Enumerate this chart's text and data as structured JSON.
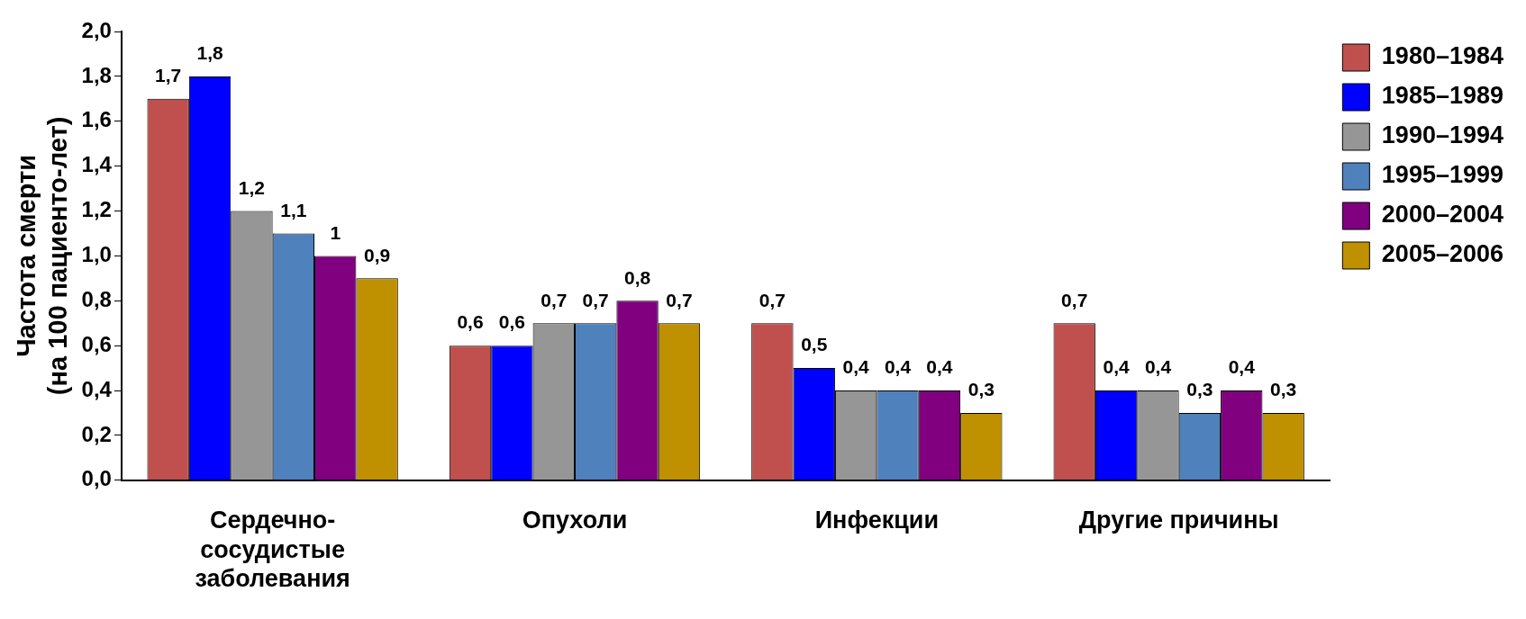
{
  "chart_data": {
    "type": "bar",
    "ylabel": "Частота смерти\n(на 100 пациенто-лет)",
    "categories": [
      "Сердечно-\nсосудистые\nзаболевания",
      "Опухоли",
      "Инфекции",
      "Другие причины"
    ],
    "series": [
      {
        "name": "1980–1984",
        "color": "#c0504d",
        "values": [
          1.7,
          0.6,
          0.7,
          0.7
        ],
        "value_labels": [
          "1,7",
          "0,6",
          "0,7",
          "0,7"
        ]
      },
      {
        "name": "1985–1989",
        "color": "#0000ff",
        "values": [
          1.8,
          0.6,
          0.5,
          0.4
        ],
        "value_labels": [
          "1,8",
          "0,6",
          "0,5",
          "0,4"
        ]
      },
      {
        "name": "1990–1994",
        "color": "#969696",
        "values": [
          1.2,
          0.7,
          0.4,
          0.4
        ],
        "value_labels": [
          "1,2",
          "0,7",
          "0,4",
          "0,4"
        ]
      },
      {
        "name": "1995–1999",
        "color": "#4f81bd",
        "values": [
          1.1,
          0.7,
          0.4,
          0.3
        ],
        "value_labels": [
          "1,1",
          "0,7",
          "0,4",
          "0,3"
        ]
      },
      {
        "name": "2000–2004",
        "color": "#800080",
        "values": [
          1,
          0.8,
          0.4,
          0.4
        ],
        "value_labels": [
          "1",
          "0,8",
          "0,4",
          "0,4"
        ]
      },
      {
        "name": "2005–2006",
        "color": "#bf9000",
        "values": [
          0.9,
          0.7,
          0.3,
          0.3
        ],
        "value_labels": [
          "0,9",
          "0,7",
          "0,3",
          "0,3"
        ]
      }
    ],
    "ylim": [
      0,
      2
    ],
    "yticks": [
      {
        "value": 0,
        "label": "0,0"
      },
      {
        "value": 0.2,
        "label": "0,2"
      },
      {
        "value": 0.4,
        "label": "0,4"
      },
      {
        "value": 0.6,
        "label": "0,6"
      },
      {
        "value": 0.8,
        "label": "0,8"
      },
      {
        "value": 1,
        "label": "1,0"
      },
      {
        "value": 1.2,
        "label": "1,2"
      },
      {
        "value": 1.4,
        "label": "1,4"
      },
      {
        "value": 1.6,
        "label": "1,6"
      },
      {
        "value": 1.8,
        "label": "1,8"
      },
      {
        "value": 2,
        "label": "2,0"
      }
    ],
    "grid": false,
    "legend": "top right"
  }
}
